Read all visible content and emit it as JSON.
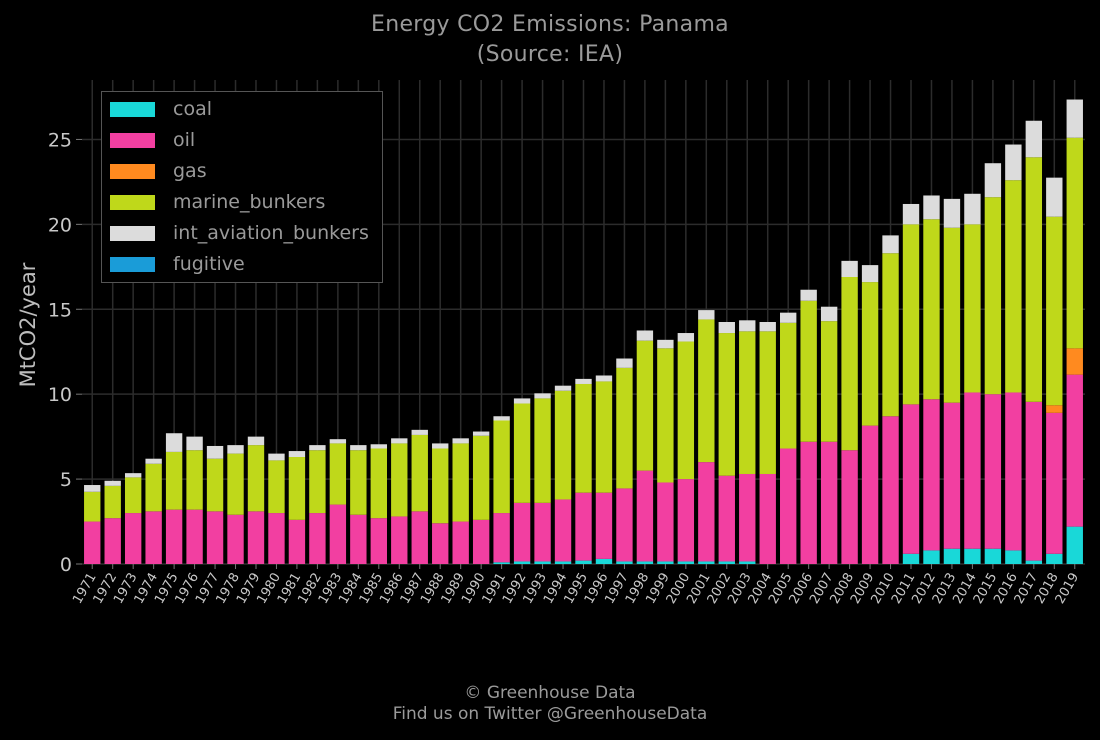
{
  "title_line1": "Energy CO2 Emissions: Panama",
  "title_line2": "(Source: IEA)",
  "credit_line1": "© Greenhouse Data",
  "credit_line2": "Find us on Twitter @GreenhouseData",
  "colors": {
    "coal": "#19d8d8",
    "oil": "#f23fa1",
    "gas": "#ff8a1f",
    "marine_bunkers": "#bfd81a",
    "int_aviation_bunkers": "#dcdcdc",
    "fugitive": "#1a9cd8",
    "grid": "#2c2c2c",
    "background": "#000000"
  },
  "chart_data": {
    "type": "bar",
    "stacked": true,
    "title": "Energy CO2 Emissions: Panama\n(Source: IEA)",
    "xlabel": "",
    "ylabel": "MtCO2/year",
    "ylim": [
      0,
      28.5
    ],
    "yticks": [
      0,
      5,
      10,
      15,
      20,
      25
    ],
    "grid": true,
    "legend_position": "top-left",
    "categories": [
      "1971",
      "1972",
      "1973",
      "1974",
      "1975",
      "1976",
      "1977",
      "1978",
      "1979",
      "1980",
      "1981",
      "1982",
      "1983",
      "1984",
      "1985",
      "1986",
      "1987",
      "1988",
      "1989",
      "1990",
      "1991",
      "1992",
      "1993",
      "1994",
      "1995",
      "1996",
      "1997",
      "1998",
      "1999",
      "2000",
      "2001",
      "2002",
      "2003",
      "2004",
      "2005",
      "2006",
      "2007",
      "2008",
      "2009",
      "2010",
      "2011",
      "2012",
      "2013",
      "2014",
      "2015",
      "2016",
      "2017",
      "2018",
      "2019"
    ],
    "series": [
      {
        "name": "coal",
        "values": [
          0,
          0,
          0,
          0,
          0,
          0,
          0,
          0,
          0,
          0,
          0,
          0,
          0,
          0,
          0,
          0,
          0,
          0,
          0,
          0,
          0.1,
          0.15,
          0.15,
          0.15,
          0.2,
          0.3,
          0.15,
          0.15,
          0.15,
          0.15,
          0.15,
          0.15,
          0.15,
          0,
          0,
          0,
          0,
          0,
          0,
          0,
          0.6,
          0.8,
          0.9,
          0.9,
          0.9,
          0.8,
          0.2,
          0.6,
          2.2
        ]
      },
      {
        "name": "oil",
        "values": [
          2.5,
          2.7,
          3.0,
          3.1,
          3.2,
          3.2,
          3.1,
          2.9,
          3.1,
          3.0,
          2.6,
          3.0,
          3.5,
          2.9,
          2.7,
          2.8,
          3.1,
          2.4,
          2.5,
          2.6,
          2.9,
          3.45,
          3.45,
          3.65,
          4.0,
          3.9,
          4.3,
          5.35,
          4.65,
          4.85,
          5.85,
          5.05,
          5.15,
          5.3,
          6.8,
          7.2,
          7.2,
          6.7,
          8.15,
          8.7,
          8.8,
          8.9,
          8.6,
          9.2,
          9.1,
          9.3,
          9.35,
          8.3,
          8.95
        ]
      },
      {
        "name": "gas",
        "values": [
          0,
          0,
          0,
          0,
          0,
          0,
          0,
          0,
          0,
          0,
          0,
          0,
          0,
          0,
          0,
          0,
          0,
          0,
          0,
          0,
          0,
          0,
          0,
          0,
          0,
          0,
          0,
          0,
          0,
          0,
          0,
          0,
          0,
          0,
          0,
          0,
          0,
          0,
          0,
          0,
          0,
          0,
          0,
          0,
          0,
          0,
          0,
          0.45,
          1.55
        ]
      },
      {
        "name": "marine_bunkers",
        "values": [
          1.75,
          1.9,
          2.1,
          2.8,
          3.4,
          3.5,
          3.1,
          3.6,
          3.9,
          3.1,
          3.7,
          3.7,
          3.6,
          3.8,
          4.1,
          4.3,
          4.5,
          4.4,
          4.6,
          4.95,
          5.45,
          5.85,
          6.15,
          6.4,
          6.4,
          6.55,
          7.1,
          7.65,
          7.9,
          8.1,
          8.4,
          8.4,
          8.4,
          8.4,
          7.4,
          8.3,
          7.1,
          10.2,
          8.45,
          9.6,
          10.6,
          10.6,
          10.3,
          9.9,
          11.6,
          12.5,
          14.4,
          11.1,
          12.4
        ]
      },
      {
        "name": "int_aviation_bunkers",
        "values": [
          0.4,
          0.3,
          0.25,
          0.3,
          1.1,
          0.8,
          0.75,
          0.5,
          0.5,
          0.4,
          0.35,
          0.3,
          0.25,
          0.3,
          0.25,
          0.3,
          0.3,
          0.3,
          0.3,
          0.25,
          0.25,
          0.3,
          0.3,
          0.3,
          0.3,
          0.35,
          0.55,
          0.6,
          0.5,
          0.5,
          0.55,
          0.65,
          0.65,
          0.55,
          0.6,
          0.65,
          0.85,
          0.95,
          1.0,
          1.05,
          1.2,
          1.4,
          1.7,
          1.8,
          2.0,
          2.1,
          2.15,
          2.3,
          2.25
        ]
      },
      {
        "name": "fugitive",
        "values": [
          0,
          0,
          0,
          0,
          0,
          0,
          0,
          0,
          0,
          0,
          0,
          0,
          0,
          0,
          0,
          0,
          0,
          0,
          0,
          0,
          0,
          0,
          0,
          0,
          0,
          0,
          0,
          0,
          0,
          0,
          0,
          0,
          0,
          0,
          0,
          0,
          0,
          0,
          0,
          0,
          0,
          0,
          0,
          0,
          0,
          0,
          0,
          0,
          0
        ]
      }
    ]
  }
}
